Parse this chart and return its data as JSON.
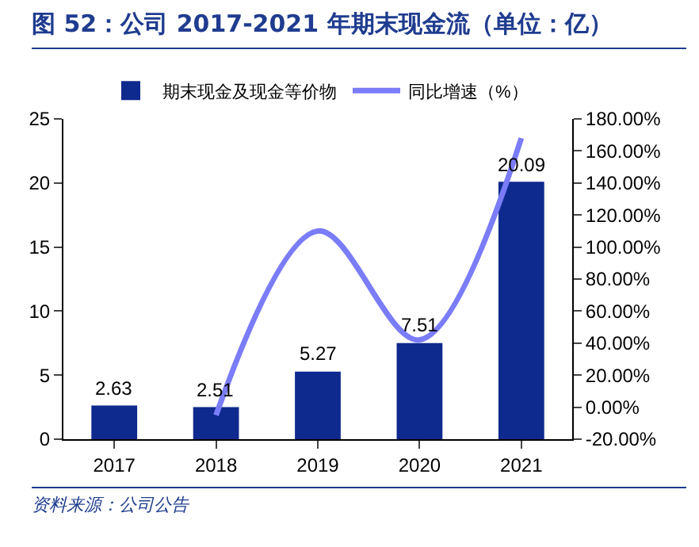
{
  "chart_data": {
    "type": "bar",
    "title": "图 52：公司 2017-2021 年期末现金流（单位：亿）",
    "categories": [
      "2017",
      "2018",
      "2019",
      "2020",
      "2021"
    ],
    "series": [
      {
        "name": "期末现金及现金等价物",
        "color": "#0f2a8e",
        "values": [
          2.63,
          2.51,
          5.27,
          7.51,
          20.09
        ],
        "value_labels": [
          "2.63",
          "2.51",
          "5.27",
          "7.51",
          "20.09"
        ]
      },
      {
        "name": "同比增速（%）",
        "type": "line",
        "axis": "y2",
        "color": "#7b7cf7",
        "values": [
          null,
          -5,
          110,
          42,
          168
        ]
      }
    ],
    "ylim": [
      0,
      25
    ],
    "yticks": [
      0,
      5,
      10,
      15,
      20,
      25
    ],
    "y2lim": [
      -20,
      180
    ],
    "y2ticks": [
      {
        "value": -20,
        "label": "-20.00%"
      },
      {
        "value": 0,
        "label": "0.00%"
      },
      {
        "value": 20,
        "label": "20.00%"
      },
      {
        "value": 40,
        "label": "40.00%"
      },
      {
        "value": 60,
        "label": "60.00%"
      },
      {
        "value": 80,
        "label": "80.00%"
      },
      {
        "value": 100,
        "label": "100.00%"
      },
      {
        "value": 120,
        "label": "120.00%"
      },
      {
        "value": 140,
        "label": "140.00%"
      },
      {
        "value": 160,
        "label": "160.00%"
      },
      {
        "value": 180,
        "label": "180.00%"
      }
    ],
    "marker": "none",
    "line_style": "solid",
    "grid": false,
    "legend": "top",
    "annotations": [
      "资料来源：公司公告"
    ]
  }
}
